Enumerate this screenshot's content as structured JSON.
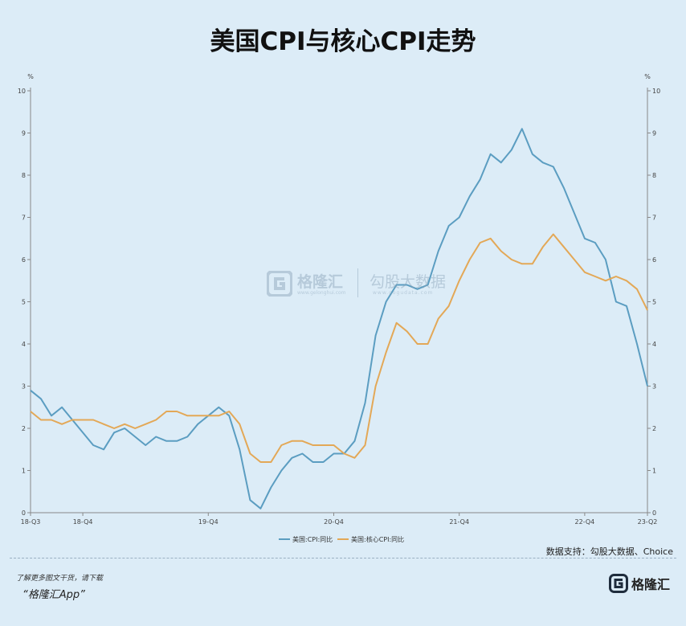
{
  "title": "美国CPI与核心CPI走势",
  "source": "数据支持：勾股大数据、Choice",
  "footer": {
    "note": "了解更多图文干货，请下载",
    "app": "“格隆汇App”",
    "logo_text": "格隆汇"
  },
  "watermark": {
    "brand": "格隆汇",
    "brand_sub": "www.gelonghui.com",
    "data_brand": "勾股大数据",
    "data_sub": "www.gogudata.com"
  },
  "colors": {
    "cpi": "#5b9dc1",
    "core": "#e3a857",
    "axis": "#888888",
    "grid": "#c8d9e6"
  },
  "chart_data": {
    "type": "line",
    "left_unit": "%",
    "right_unit": "%",
    "ylim": [
      0,
      10
    ],
    "yticks": [
      0,
      1,
      2,
      3,
      4,
      5,
      6,
      7,
      8,
      9,
      10
    ],
    "x_start_label": "18-Q3",
    "x_tick_labels": [
      {
        "label": "18-Q3",
        "index": 0
      },
      {
        "label": "18-Q4",
        "index": 5
      },
      {
        "label": "19-Q4",
        "index": 17
      },
      {
        "label": "20-Q4",
        "index": 29
      },
      {
        "label": "21-Q4",
        "index": 41
      },
      {
        "label": "22-Q4",
        "index": 53
      },
      {
        "label": "23-Q2",
        "index": 59
      }
    ],
    "series": [
      {
        "name": "美国:CPI:同比",
        "values": [
          2.9,
          2.7,
          2.3,
          2.5,
          2.2,
          1.9,
          1.6,
          1.5,
          1.9,
          2.0,
          1.8,
          1.6,
          1.8,
          1.7,
          1.7,
          1.8,
          2.1,
          2.3,
          2.5,
          2.3,
          1.5,
          0.3,
          0.1,
          0.6,
          1.0,
          1.3,
          1.4,
          1.2,
          1.2,
          1.4,
          1.4,
          1.7,
          2.6,
          4.2,
          5.0,
          5.4,
          5.4,
          5.3,
          5.4,
          6.2,
          6.8,
          7.0,
          7.5,
          7.9,
          8.5,
          8.3,
          8.6,
          9.1,
          8.5,
          8.3,
          8.2,
          7.7,
          7.1,
          6.5,
          6.4,
          6.0,
          5.0,
          4.9,
          4.0,
          3.0
        ]
      },
      {
        "name": "美国:核心CPI:同比",
        "values": [
          2.4,
          2.2,
          2.2,
          2.1,
          2.2,
          2.2,
          2.2,
          2.1,
          2.0,
          2.1,
          2.0,
          2.1,
          2.2,
          2.4,
          2.4,
          2.3,
          2.3,
          2.3,
          2.3,
          2.4,
          2.1,
          1.4,
          1.2,
          1.2,
          1.6,
          1.7,
          1.7,
          1.6,
          1.6,
          1.6,
          1.4,
          1.3,
          1.6,
          3.0,
          3.8,
          4.5,
          4.3,
          4.0,
          4.0,
          4.6,
          4.9,
          5.5,
          6.0,
          6.4,
          6.5,
          6.2,
          6.0,
          5.9,
          5.9,
          6.3,
          6.6,
          6.3,
          6.0,
          5.7,
          5.6,
          5.5,
          5.6,
          5.5,
          5.3,
          4.8
        ]
      }
    ]
  }
}
